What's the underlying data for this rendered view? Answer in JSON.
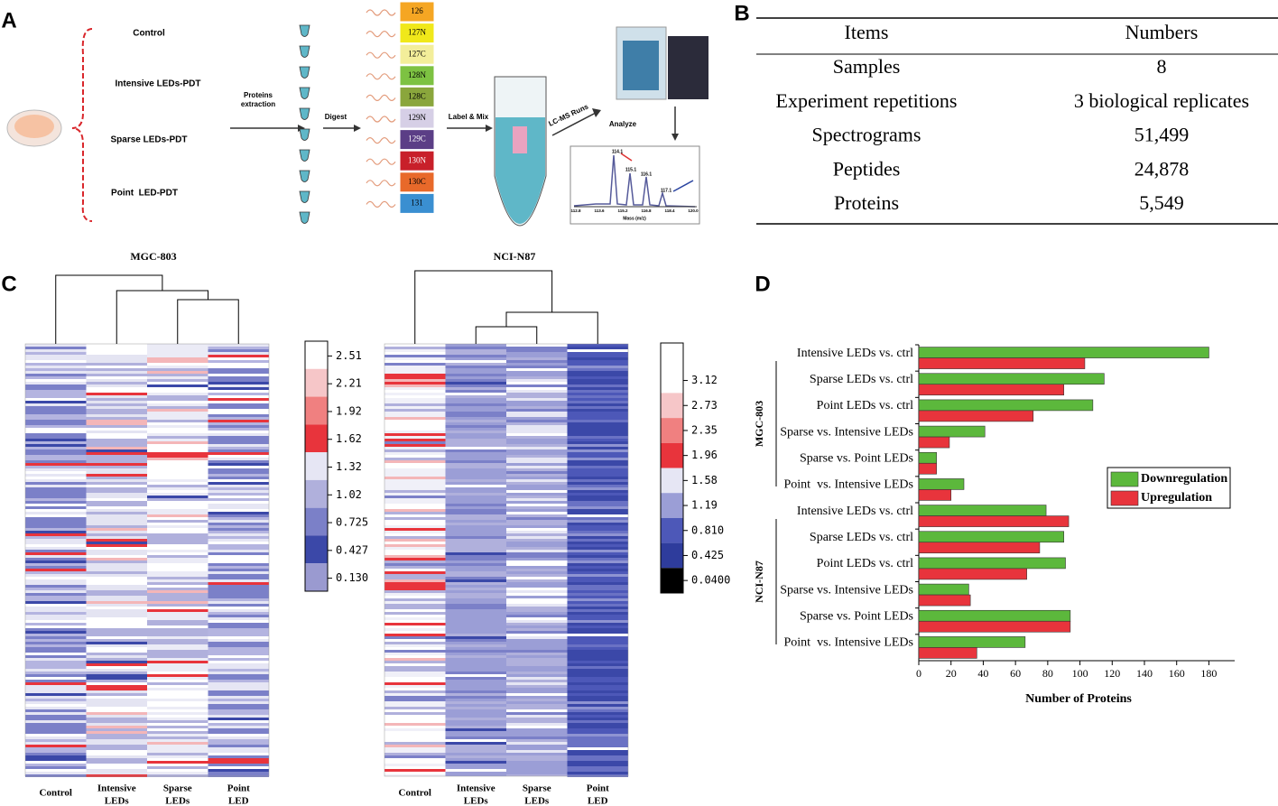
{
  "panel_labels": [
    "A",
    "B",
    "C",
    "D"
  ],
  "workflow": {
    "groups": [
      "Control",
      "Intensive LEDs-PDT",
      "Sparse LEDs-PDT",
      "Point  LED-PDT"
    ],
    "steps": [
      "Proteins extraction",
      "Digest",
      "Label & Mix",
      "LC-MS Runs",
      "Analyze"
    ],
    "tags": [
      "126",
      "127N",
      "127C",
      "128N",
      "128C",
      "129N",
      "129C",
      "130N",
      "130C",
      "131"
    ],
    "peaks": [
      "114.1",
      "115.1",
      "116.1",
      "117.1"
    ],
    "spectrum_ticks": [
      "112.8",
      "113.6",
      "115.2",
      "116.8",
      "118.4",
      "120.0"
    ],
    "spectrum_xlabel": "Mass (m/z)"
  },
  "table": {
    "header": [
      "Items",
      "Numbers"
    ],
    "rows": [
      [
        "Samples",
        "8"
      ],
      [
        "Experiment repetitions",
        "3 biological replicates"
      ],
      [
        "Spectrograms",
        "51,499"
      ],
      [
        "Peptides",
        "24,878"
      ],
      [
        "Proteins",
        "5,549"
      ]
    ]
  },
  "heatmaps": [
    {
      "title": "MGC-803",
      "columns": [
        [
          "Control"
        ],
        [
          "Intensive",
          "LEDs"
        ],
        [
          "Sparse",
          "LEDs"
        ],
        [
          "Point",
          "LED"
        ]
      ],
      "colorbar": [
        "2.51",
        "2.21",
        "1.92",
        "1.62",
        "1.32",
        "1.02",
        "0.725",
        "0.427",
        "0.130"
      ]
    },
    {
      "title": "NCI-N87",
      "columns": [
        [
          "Control"
        ],
        [
          "Intensive",
          "LEDs"
        ],
        [
          "Sparse",
          "LEDs"
        ],
        [
          "Point",
          "LED"
        ]
      ],
      "colorbar": [
        "3.12",
        "2.73",
        "2.35",
        "1.96",
        "1.58",
        "1.19",
        "0.810",
        "0.425",
        "0.0400"
      ]
    }
  ],
  "chart_data": {
    "type": "barh",
    "categories": [
      "Intensive LEDs vs. ctrl",
      "Sparse LEDs vs. ctrl",
      "Point LEDs vs. ctrl",
      "Sparse vs. Intensive LEDs",
      "Sparse vs. Point LEDs",
      "Point  vs. Intensive LEDs",
      "Intensive LEDs vs. ctrl",
      "Sparse LEDs vs. ctrl",
      "Point LEDs vs. ctrl",
      "Sparse vs. Intensive LEDs",
      "Sparse vs. Point LEDs",
      "Point  vs. Intensive LEDs"
    ],
    "groups": [
      "MGC-803",
      "NCI-N87"
    ],
    "series": [
      {
        "name": "Downregulation",
        "color": "#5cb83c",
        "values": [
          180,
          115,
          108,
          41,
          11,
          28,
          79,
          90,
          91,
          31,
          94,
          66
        ]
      },
      {
        "name": "Upregulation",
        "color": "#e8343c",
        "values": [
          103,
          90,
          71,
          19,
          11,
          20,
          93,
          75,
          67,
          32,
          94,
          36
        ]
      }
    ],
    "xlabel": "Number of Proteins",
    "xlim": [
      0,
      196
    ],
    "xticks": [
      0,
      20,
      40,
      60,
      80,
      100,
      120,
      140,
      160,
      180
    ],
    "legend": "right"
  }
}
